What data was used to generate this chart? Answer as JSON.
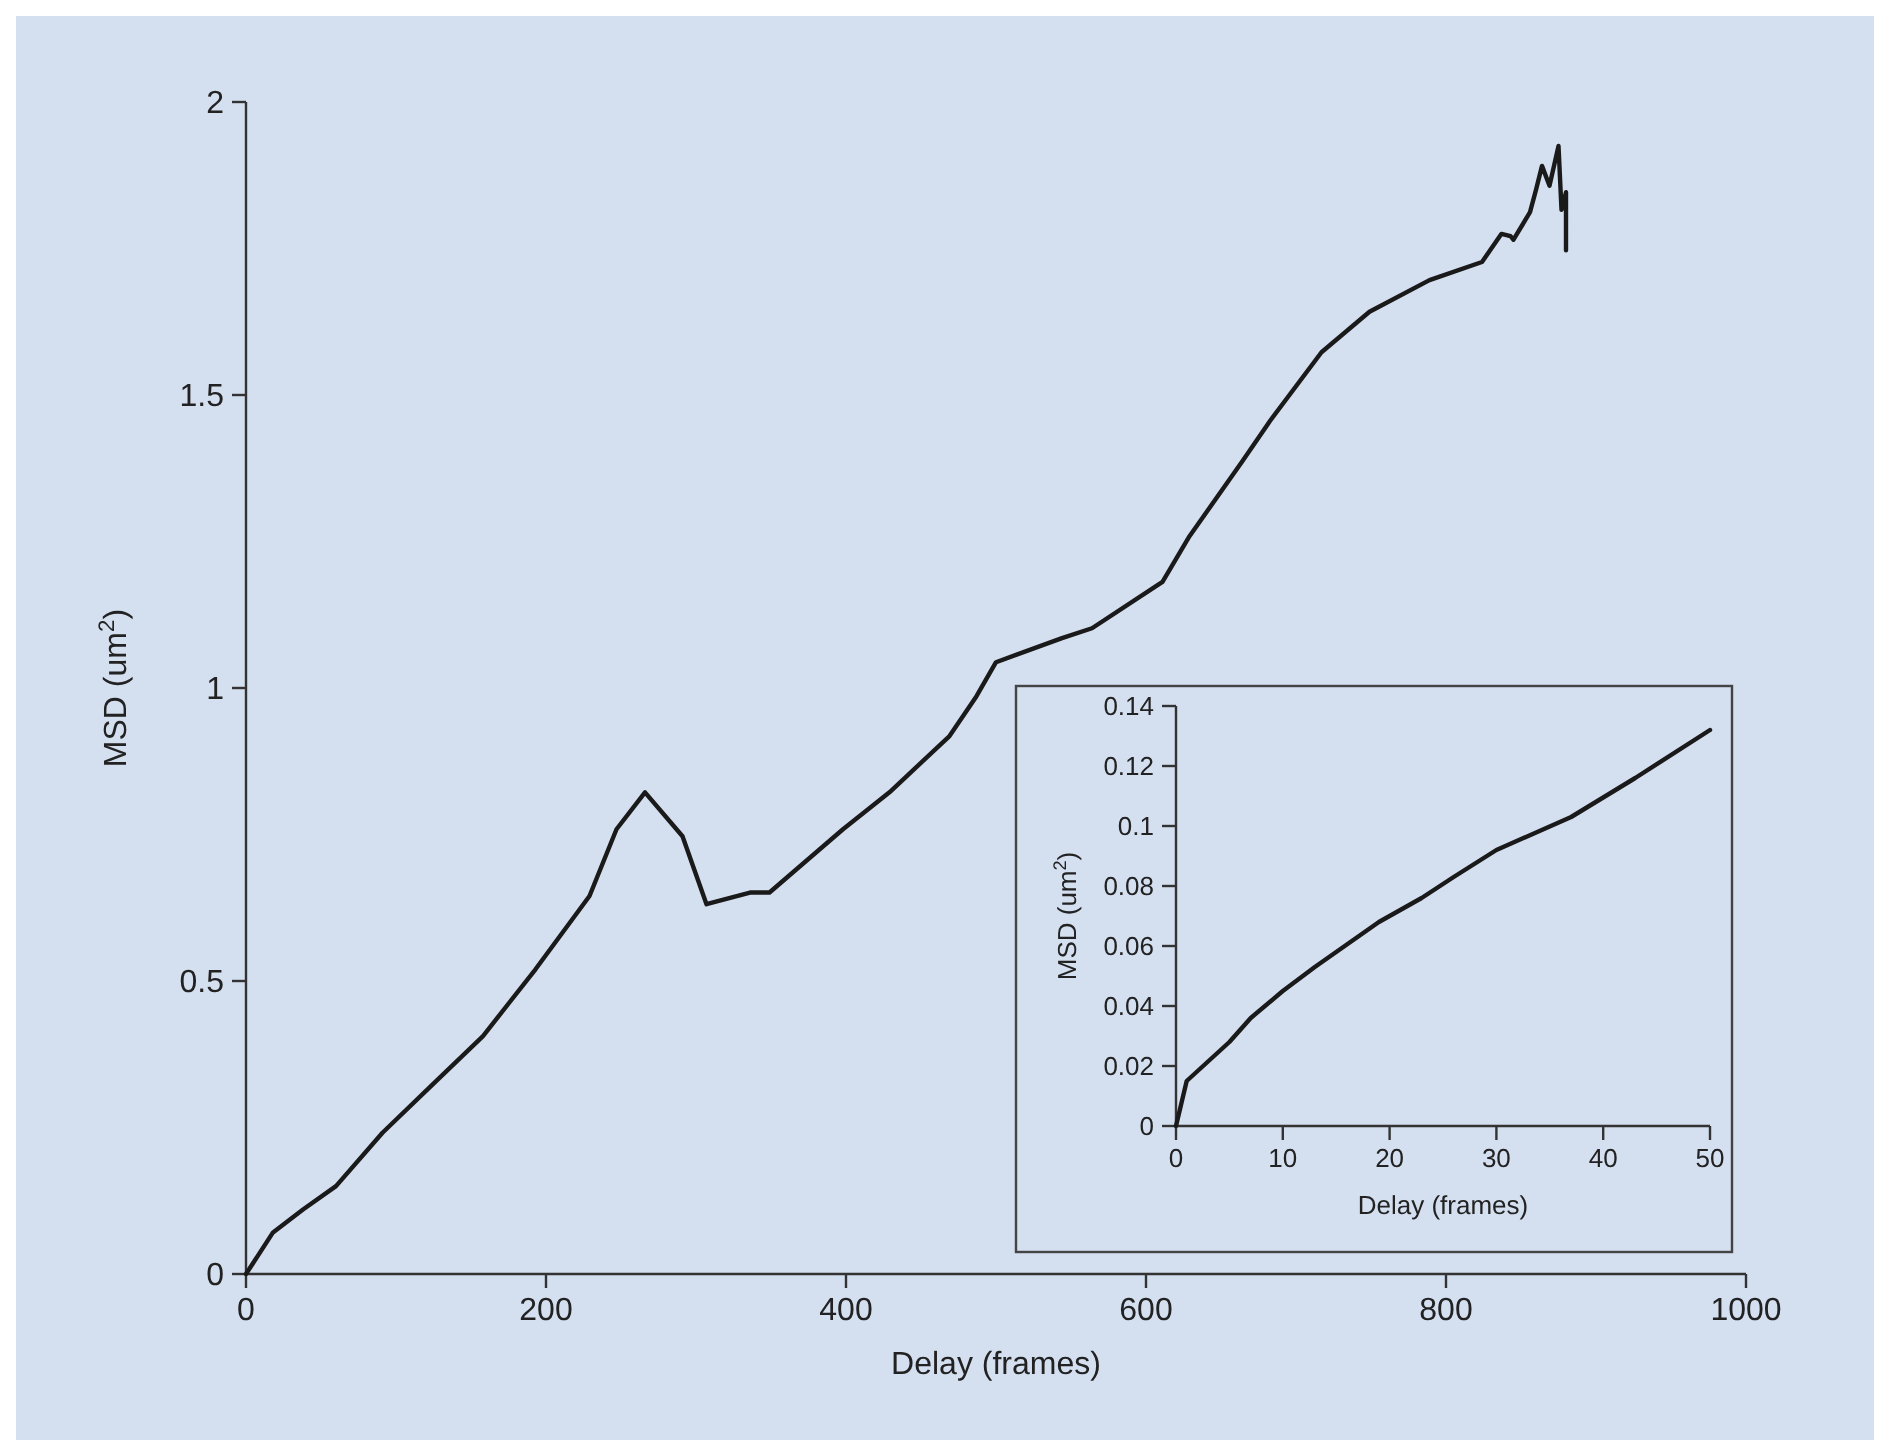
{
  "chart_data": [
    {
      "type": "line",
      "xlabel": "Delay (frames)",
      "ylabel": "MSD (um$^{2}$)",
      "xlim": [
        0,
        1000
      ],
      "ylim": [
        0,
        2
      ],
      "xticks": [
        0,
        200,
        400,
        600,
        800,
        1000
      ],
      "yticks": [
        0,
        0.5,
        1,
        1.5,
        2
      ],
      "series": [
        {
          "color": "#1a1a1a",
          "x": [
            0,
            18,
            38,
            60,
            91,
            125,
            158,
            193,
            229,
            247,
            266,
            291,
            307,
            336,
            349,
            398,
            429,
            469,
            487,
            500,
            544,
            564,
            611,
            629,
            664,
            683,
            717,
            749,
            789,
            824,
            837,
            843,
            845,
            856,
            860,
            864,
            869,
            875,
            877,
            880,
            880
          ],
          "values": [
            0,
            0.071,
            0.11,
            0.15,
            0.241,
            0.325,
            0.406,
            0.52,
            0.645,
            0.759,
            0.822,
            0.747,
            0.631,
            0.651,
            0.651,
            0.759,
            0.822,
            0.918,
            0.986,
            1.044,
            1.085,
            1.102,
            1.181,
            1.259,
            1.386,
            1.457,
            1.573,
            1.642,
            1.696,
            1.727,
            1.775,
            1.771,
            1.765,
            1.812,
            1.85,
            1.891,
            1.857,
            1.925,
            1.816,
            1.846,
            1.747
          ]
        }
      ]
    },
    {
      "type": "line",
      "xlabel": "Delay (frames)",
      "ylabel": "MSD (um$^{2}$)",
      "xlim": [
        0,
        50
      ],
      "ylim": [
        0,
        0.14
      ],
      "xticks": [
        0,
        10,
        20,
        30,
        40,
        50
      ],
      "yticks": [
        0,
        0.02,
        0.04,
        0.06,
        0.08,
        0.1,
        0.12,
        0.14
      ],
      "series": [
        {
          "color": "#1a1a1a",
          "x": [
            0,
            1,
            5,
            7,
            10,
            13,
            19,
            23,
            26,
            30,
            37,
            43,
            50
          ],
          "values": [
            0,
            0.015,
            0.028,
            0.036,
            0.045,
            0.053,
            0.068,
            0.076,
            0.083,
            0.092,
            0.103,
            0.116,
            0.132
          ]
        }
      ]
    }
  ]
}
